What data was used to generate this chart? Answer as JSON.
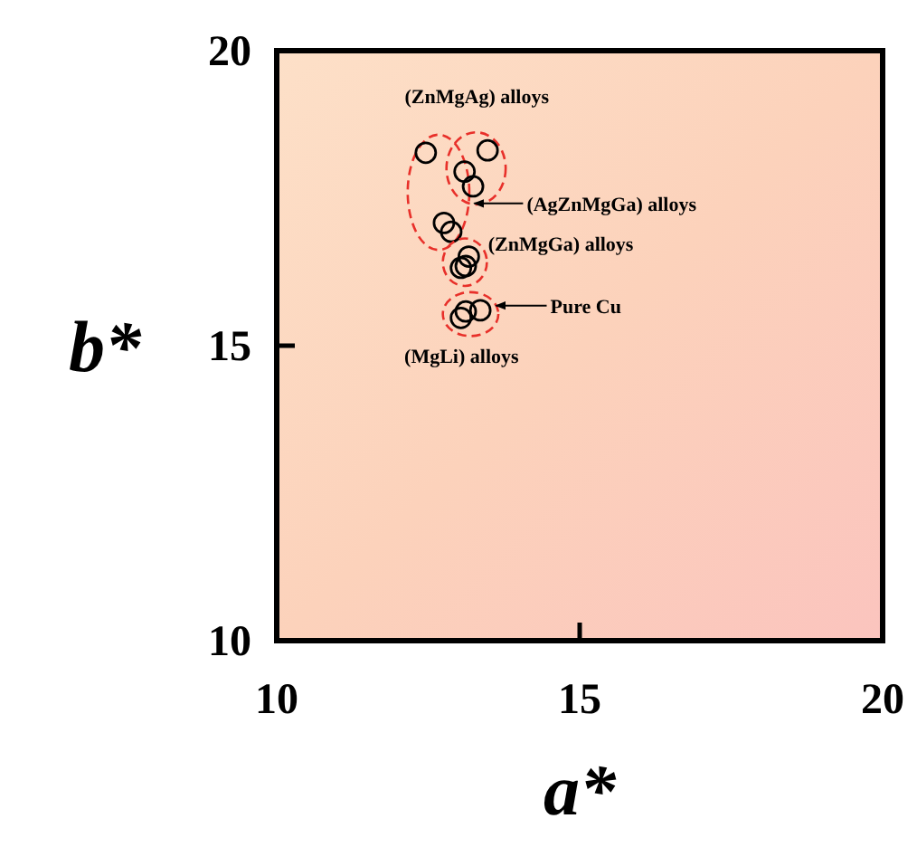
{
  "chart_data": {
    "type": "scatter",
    "xlabel": "a*",
    "ylabel": "b*",
    "xlim": [
      10,
      20
    ],
    "ylim": [
      10,
      20
    ],
    "xticks": [
      10,
      15,
      20
    ],
    "yticks": [
      10,
      15,
      20
    ],
    "marker": "circle",
    "series": [
      {
        "color": "#000000",
        "x": [
          12.46,
          12.76,
          12.88
        ],
        "values": [
          18.27,
          17.08,
          16.93
        ]
      },
      {
        "color": "#000000",
        "x": [
          13.48,
          13.1,
          13.24
        ],
        "values": [
          18.31,
          17.95,
          17.7
        ]
      },
      {
        "color": "#000000",
        "x": [
          13.17,
          13.12,
          13.04
        ],
        "values": [
          16.51,
          16.35,
          16.32
        ]
      },
      {
        "color": "#000000",
        "x": [
          13.12,
          13.04,
          13.36
        ],
        "values": [
          15.58,
          15.47,
          15.6
        ]
      }
    ],
    "annotations": [
      "(ZnMgAg) alloys",
      {
        "text": "(AgZnMgGa) alloys",
        "x": 13.17,
        "y": 17.41
      },
      {
        "text": "(ZnMgGa) alloys",
        "x": 13.1,
        "y": 16.4
      },
      {
        "text": "Pure Cu",
        "x": 13.53,
        "y": 15.68
      },
      {
        "text": "(MgLi) alloys",
        "x": 13.05,
        "y": 15.5
      }
    ]
  }
}
